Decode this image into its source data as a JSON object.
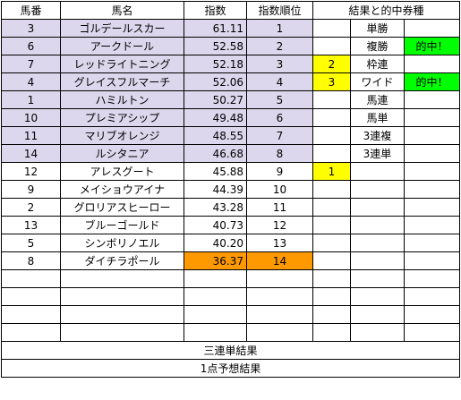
{
  "colors": {
    "highlight_row": "#DCD7EC",
    "orange": "#FF9900",
    "yellow": "#FFFF00",
    "green": "#00FF00",
    "grid": "#000000"
  },
  "headers": [
    "馬番",
    "馬名",
    "指数",
    "指数順位",
    "結果と的中券種"
  ],
  "rows": [
    {
      "num": "3",
      "name": "ゴルデールスカー",
      "score": "61.11",
      "rank": "1",
      "mark": "",
      "ticket": "単勝",
      "hit": ""
    },
    {
      "num": "6",
      "name": "アークドール",
      "score": "52.58",
      "rank": "2",
      "mark": "",
      "ticket": "複勝",
      "hit": "的中！"
    },
    {
      "num": "7",
      "name": "レッドライトニング",
      "score": "52.18",
      "rank": "3",
      "mark": "2",
      "ticket": "枠連",
      "hit": ""
    },
    {
      "num": "4",
      "name": "グレイスフルマーチ",
      "score": "52.06",
      "rank": "4",
      "mark": "3",
      "ticket": "ワイド",
      "hit": "的中！"
    },
    {
      "num": "1",
      "name": "ハミルトン",
      "score": "50.27",
      "rank": "5",
      "mark": "",
      "ticket": "馬連",
      "hit": ""
    },
    {
      "num": "10",
      "name": "プレミアシップ",
      "score": "49.48",
      "rank": "6",
      "mark": "",
      "ticket": "馬単",
      "hit": ""
    },
    {
      "num": "11",
      "name": "マリブオレンジ",
      "score": "48.55",
      "rank": "7",
      "mark": "",
      "ticket": "3連複",
      "hit": ""
    },
    {
      "num": "14",
      "name": "ルシタニア",
      "score": "46.68",
      "rank": "8",
      "mark": "",
      "ticket": "3連単",
      "hit": ""
    },
    {
      "num": "12",
      "name": "アレスグート",
      "score": "45.88",
      "rank": "9",
      "mark": "1",
      "ticket": "",
      "hit": ""
    },
    {
      "num": "9",
      "name": "メイショウアイナ",
      "score": "44.39",
      "rank": "10",
      "mark": "",
      "ticket": "",
      "hit": ""
    },
    {
      "num": "2",
      "name": "グロリアスヒーロー",
      "score": "43.28",
      "rank": "11",
      "mark": "",
      "ticket": "",
      "hit": ""
    },
    {
      "num": "13",
      "name": "ブルーゴールド",
      "score": "40.73",
      "rank": "12",
      "mark": "",
      "ticket": "",
      "hit": ""
    },
    {
      "num": "5",
      "name": "シンボリノエル",
      "score": "40.20",
      "rank": "13",
      "mark": "",
      "ticket": "",
      "hit": ""
    },
    {
      "num": "8",
      "name": "ダイチラポール",
      "score": "36.37",
      "rank": "14",
      "mark": "",
      "ticket": "",
      "hit": ""
    }
  ],
  "footer": {
    "line1": "三連単結果",
    "line2": "1点予想結果"
  }
}
